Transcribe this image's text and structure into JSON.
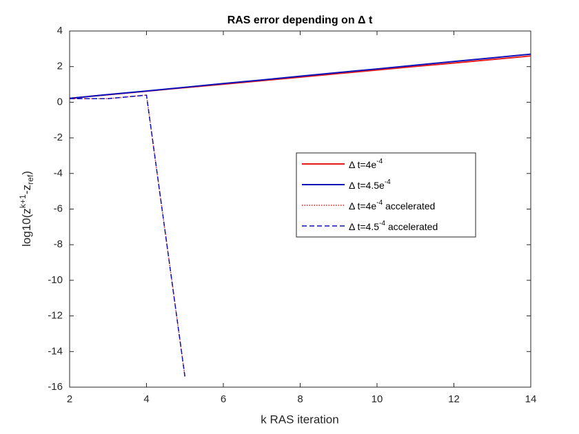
{
  "chart_data": {
    "type": "line",
    "title": "RAS error depending on Δ t",
    "xlabel": "k RAS iteration",
    "ylabel": "log10(z^{k+1}-z_{ref})",
    "x": [
      2,
      3,
      4,
      5,
      6,
      7,
      8,
      9,
      10,
      11,
      12,
      13,
      14
    ],
    "series": [
      {
        "name": "Δ t=4e^{-4}",
        "color": "#e41a1c",
        "dash": "solid",
        "values": [
          0.22,
          0.42,
          0.62,
          0.82,
          1.01,
          1.21,
          1.41,
          1.61,
          1.81,
          2.01,
          2.2,
          2.4,
          2.6
        ]
      },
      {
        "name": "Δ t=4.5e^{-4}",
        "color": "#0c10b8",
        "dash": "solid",
        "values": [
          0.22,
          0.43,
          0.63,
          0.84,
          1.05,
          1.25,
          1.46,
          1.67,
          1.87,
          2.08,
          2.29,
          2.49,
          2.7
        ]
      },
      {
        "name": "Δ t=4e^{-4} accelerated",
        "color": "#e41a1c",
        "dash": "dotted",
        "values": [
          0.2,
          0.2,
          0.4,
          -15.4,
          null,
          null,
          null,
          null,
          null,
          null,
          null,
          null,
          null
        ]
      },
      {
        "name": "Δ t=4.5^{-4} accelerated",
        "color": "#0c10b8",
        "dash": "dashed",
        "values": [
          0.2,
          0.2,
          0.4,
          -15.4,
          null,
          null,
          null,
          null,
          null,
          null,
          null,
          null,
          null
        ]
      }
    ],
    "xlim": [
      2,
      14
    ],
    "xticks": [
      2,
      4,
      6,
      8,
      10,
      12,
      14
    ],
    "ylim": [
      -16,
      4
    ],
    "yticks": [
      -16,
      -14,
      -12,
      -10,
      -8,
      -6,
      -4,
      -2,
      0,
      2,
      4
    ],
    "legend": "right"
  }
}
